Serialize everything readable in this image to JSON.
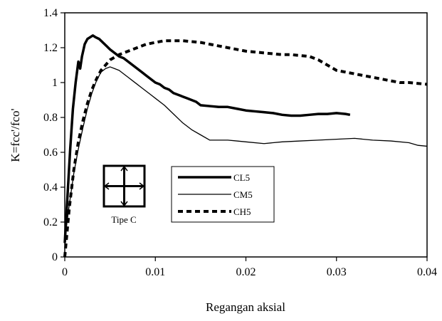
{
  "chart_data": {
    "type": "line",
    "xlabel": "Regangan aksial",
    "ylabel": "K=fcc'/fco'",
    "xlim": [
      0,
      0.04
    ],
    "ylim": [
      0,
      1.4
    ],
    "x_ticks": [
      "0",
      "0.01",
      "0.02",
      "0.03",
      "0.04"
    ],
    "y_ticks": [
      "0",
      "0.2",
      "0.4",
      "0.6",
      "0.8",
      "1",
      "1.2",
      "1.4"
    ],
    "grid": false,
    "legend_position": "center",
    "inset_label": "Tipe C",
    "series": [
      {
        "name": "CL5",
        "style": "thick-solid",
        "color": "#000000",
        "x": [
          0,
          0.0003,
          0.0006,
          0.0009,
          0.0012,
          0.0015,
          0.0017,
          0.0019,
          0.0022,
          0.0025,
          0.0028,
          0.0031,
          0.0034,
          0.0038,
          0.0042,
          0.0046,
          0.005,
          0.0055,
          0.006,
          0.0065,
          0.007,
          0.0075,
          0.008,
          0.0085,
          0.009,
          0.0095,
          0.01,
          0.0105,
          0.011,
          0.0115,
          0.012,
          0.0125,
          0.013,
          0.0135,
          0.014,
          0.0145,
          0.015,
          0.016,
          0.017,
          0.018,
          0.019,
          0.02,
          0.021,
          0.022,
          0.023,
          0.024,
          0.025,
          0.026,
          0.027,
          0.028,
          0.029,
          0.03,
          0.031,
          0.0315
        ],
        "y": [
          0.08,
          0.35,
          0.62,
          0.85,
          1.0,
          1.12,
          1.08,
          1.15,
          1.22,
          1.25,
          1.26,
          1.27,
          1.26,
          1.25,
          1.23,
          1.21,
          1.19,
          1.17,
          1.15,
          1.14,
          1.12,
          1.1,
          1.08,
          1.06,
          1.04,
          1.02,
          1.0,
          0.99,
          0.97,
          0.96,
          0.94,
          0.93,
          0.92,
          0.91,
          0.9,
          0.89,
          0.87,
          0.865,
          0.86,
          0.86,
          0.85,
          0.84,
          0.835,
          0.83,
          0.825,
          0.815,
          0.81,
          0.81,
          0.815,
          0.82,
          0.82,
          0.825,
          0.82,
          0.815
        ]
      },
      {
        "name": "CM5",
        "style": "thin-solid",
        "color": "#000000",
        "x": [
          0,
          0.0005,
          0.001,
          0.0015,
          0.002,
          0.0025,
          0.003,
          0.0035,
          0.004,
          0.0045,
          0.005,
          0.0055,
          0.006,
          0.0065,
          0.007,
          0.0075,
          0.008,
          0.0085,
          0.009,
          0.0095,
          0.01,
          0.011,
          0.012,
          0.013,
          0.014,
          0.015,
          0.016,
          0.017,
          0.018,
          0.019,
          0.02,
          0.022,
          0.024,
          0.026,
          0.028,
          0.03,
          0.032,
          0.034,
          0.036,
          0.038,
          0.039,
          0.04
        ],
        "y": [
          0.1,
          0.3,
          0.48,
          0.62,
          0.74,
          0.85,
          0.94,
          1.01,
          1.06,
          1.08,
          1.09,
          1.08,
          1.07,
          1.05,
          1.03,
          1.01,
          0.99,
          0.97,
          0.95,
          0.93,
          0.91,
          0.87,
          0.82,
          0.77,
          0.73,
          0.7,
          0.67,
          0.67,
          0.67,
          0.665,
          0.66,
          0.65,
          0.66,
          0.665,
          0.67,
          0.675,
          0.68,
          0.67,
          0.665,
          0.655,
          0.64,
          0.635
        ]
      },
      {
        "name": "CH5",
        "style": "thick-dashed",
        "color": "#000000",
        "x": [
          0,
          0.0005,
          0.001,
          0.0015,
          0.002,
          0.0025,
          0.003,
          0.0035,
          0.004,
          0.005,
          0.006,
          0.007,
          0.008,
          0.009,
          0.01,
          0.011,
          0.012,
          0.013,
          0.014,
          0.015,
          0.016,
          0.017,
          0.018,
          0.019,
          0.02,
          0.021,
          0.022,
          0.023,
          0.024,
          0.025,
          0.026,
          0.027,
          0.028,
          0.029,
          0.03,
          0.031,
          0.032,
          0.033,
          0.034,
          0.035,
          0.036,
          0.037,
          0.038,
          0.039,
          0.04
        ],
        "y": [
          0.0,
          0.28,
          0.5,
          0.66,
          0.78,
          0.88,
          0.96,
          1.02,
          1.07,
          1.13,
          1.16,
          1.18,
          1.2,
          1.22,
          1.23,
          1.24,
          1.24,
          1.24,
          1.235,
          1.23,
          1.22,
          1.21,
          1.2,
          1.19,
          1.18,
          1.175,
          1.17,
          1.165,
          1.16,
          1.16,
          1.155,
          1.15,
          1.13,
          1.1,
          1.07,
          1.06,
          1.05,
          1.04,
          1.03,
          1.02,
          1.01,
          1.0,
          1.0,
          0.995,
          0.99
        ]
      }
    ]
  }
}
